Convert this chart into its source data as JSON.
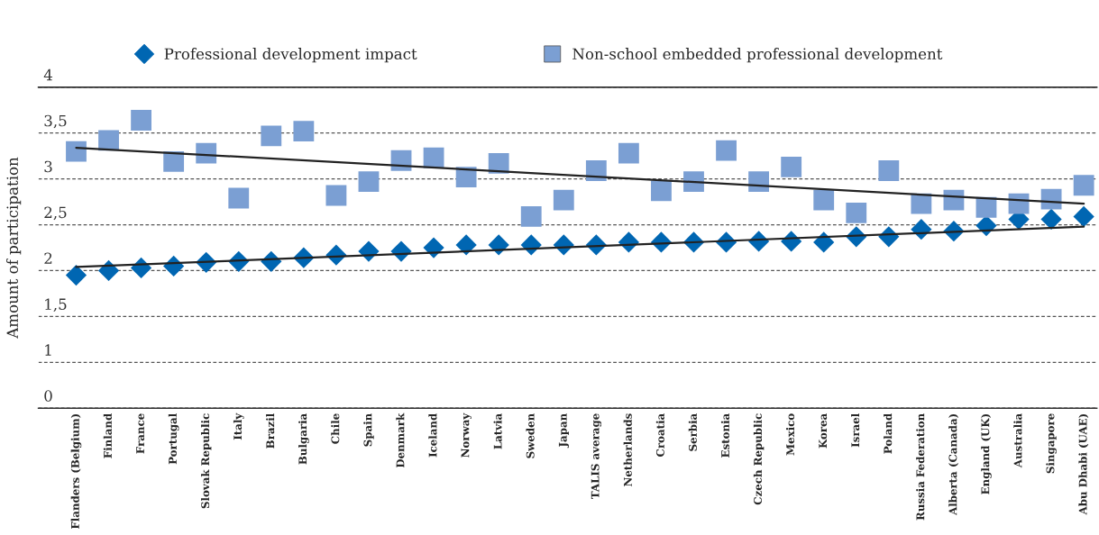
{
  "chart_data": {
    "type": "scatter",
    "ylabel": "Amount of participation",
    "categories": [
      "Flanders (Belgium)",
      "Finland",
      "France",
      "Portugal",
      "Slovak Republic",
      "Italy",
      "Brazil",
      "Bulgaria",
      "Chile",
      "Spain",
      "Denmark",
      "Iceland",
      "Norway",
      "Latvia",
      "Sweden",
      "Japan",
      "TALIS average",
      "Netherlands",
      "Croatia",
      "Serbia",
      "Estonia",
      "Czech Republic",
      "Mexico",
      "Korea",
      "Israel",
      "Poland",
      "Russia Federation",
      "Alberta (Canada)",
      "England (UK)",
      "Australia",
      "Singapore",
      "Abu Dhabi (UAE)"
    ],
    "series": [
      {
        "name": "Professional development impact",
        "color": "#0066b2",
        "marker": "diamond",
        "values": [
          1.95,
          2.0,
          2.03,
          2.05,
          2.09,
          2.1,
          2.1,
          2.14,
          2.17,
          2.21,
          2.21,
          2.25,
          2.28,
          2.28,
          2.28,
          2.28,
          2.28,
          2.31,
          2.31,
          2.31,
          2.31,
          2.32,
          2.32,
          2.31,
          2.37,
          2.37,
          2.45,
          2.43,
          2.49,
          2.56,
          2.56,
          2.59
        ]
      },
      {
        "name": "Non-school embedded professional development",
        "color": "#7b9fd3",
        "marker": "square",
        "values": [
          3.3,
          3.42,
          3.64,
          3.19,
          3.28,
          2.79,
          3.47,
          3.52,
          2.82,
          2.97,
          3.2,
          3.23,
          3.02,
          3.17,
          2.59,
          2.77,
          3.09,
          3.28,
          2.87,
          2.97,
          3.31,
          2.97,
          3.13,
          2.77,
          2.63,
          3.09,
          2.73,
          2.77,
          2.69,
          2.73,
          2.78,
          2.93
        ]
      },
      {
        "type": "line",
        "color": "#222222",
        "x": [
          "Flanders (Belgium)",
          "Abu Dhabi (UAE)"
        ],
        "values": [
          2.04,
          2.48
        ]
      },
      {
        "type": "line",
        "color": "#222222",
        "x": [
          "Flanders (Belgium)",
          "Abu Dhabi (UAE)"
        ],
        "values": [
          3.34,
          2.73
        ]
      }
    ],
    "ylim": [
      0.5,
      4
    ],
    "yticks": [
      {
        "value": 0.5,
        "label": "0"
      },
      {
        "value": 1,
        "label": "1"
      },
      {
        "value": 1.5,
        "label": "1,5"
      },
      {
        "value": 2,
        "label": "2"
      },
      {
        "value": 2.5,
        "label": "2,5"
      },
      {
        "value": 3,
        "label": "3"
      },
      {
        "value": 3.5,
        "label": "3,5"
      },
      {
        "value": 4,
        "label": "4"
      }
    ],
    "grid": "y",
    "legend": "top"
  }
}
